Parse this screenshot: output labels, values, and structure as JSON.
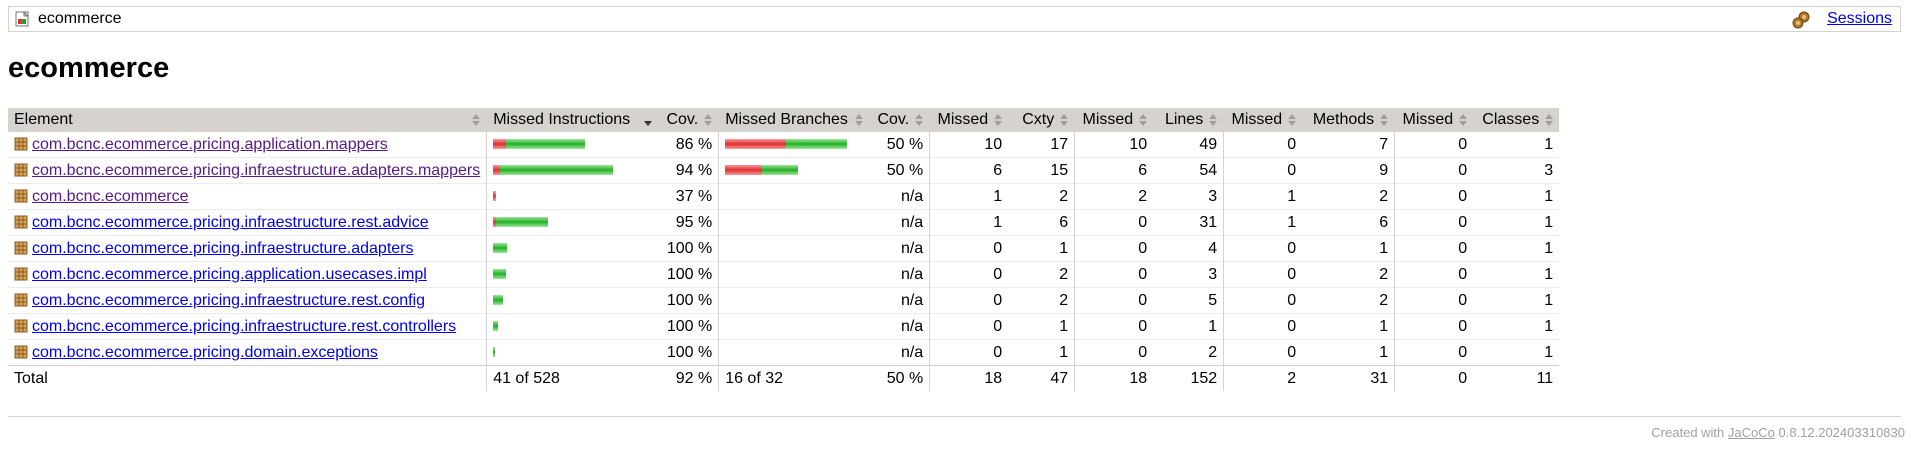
{
  "breadcrumb": {
    "title": "ecommerce",
    "sessions_label": "Sessions"
  },
  "page_title": "ecommerce",
  "table": {
    "headers": [
      "Element",
      "Missed Instructions",
      "Cov.",
      "Missed Branches",
      "Cov.",
      "Missed",
      "Cxty",
      "Missed",
      "Lines",
      "Missed",
      "Methods",
      "Missed",
      "Classes"
    ],
    "rows": [
      {
        "name": "com.bcnc.ecommerce.pricing.application.mappers",
        "visited": true,
        "instr_missed_frac": 0.14,
        "instr_bar_total": 528,
        "instr_count": 113,
        "instr_cov": "86 %",
        "br_missed_frac": 0.5,
        "br_count": 20,
        "br_cov": "50 %",
        "cx_missed": "10",
        "cx": "17",
        "ln_missed": "10",
        "ln": "49",
        "m_missed": "0",
        "m": "7",
        "c_missed": "0",
        "c": "1"
      },
      {
        "name": "com.bcnc.ecommerce.pricing.infraestructure.adapters.mappers",
        "visited": true,
        "instr_missed_frac": 0.06,
        "instr_count": 148,
        "instr_cov": "94 %",
        "br_missed_frac": 0.5,
        "br_count": 12,
        "br_cov": "50 %",
        "cx_missed": "6",
        "cx": "15",
        "ln_missed": "6",
        "ln": "54",
        "m_missed": "0",
        "m": "9",
        "c_missed": "0",
        "c": "3"
      },
      {
        "name": "com.bcnc.ecommerce",
        "visited": true,
        "instr_missed_frac": 0.63,
        "instr_count": 4,
        "instr_cov": "37 %",
        "br_missed_frac": null,
        "br_count": 0,
        "br_cov": "n/a",
        "cx_missed": "1",
        "cx": "2",
        "ln_missed": "2",
        "ln": "3",
        "m_missed": "1",
        "m": "2",
        "c_missed": "0",
        "c": "1"
      },
      {
        "name": "com.bcnc.ecommerce.pricing.infraestructure.rest.advice",
        "visited": false,
        "instr_missed_frac": 0.05,
        "instr_count": 68,
        "instr_cov": "95 %",
        "br_missed_frac": null,
        "br_count": 0,
        "br_cov": "n/a",
        "cx_missed": "1",
        "cx": "6",
        "ln_missed": "0",
        "ln": "31",
        "m_missed": "1",
        "m": "6",
        "c_missed": "0",
        "c": "1"
      },
      {
        "name": "com.bcnc.ecommerce.pricing.infraestructure.adapters",
        "visited": false,
        "instr_missed_frac": 0,
        "instr_count": 17,
        "instr_cov": "100 %",
        "br_missed_frac": null,
        "br_count": 0,
        "br_cov": "n/a",
        "cx_missed": "0",
        "cx": "1",
        "ln_missed": "0",
        "ln": "4",
        "m_missed": "0",
        "m": "1",
        "c_missed": "0",
        "c": "1"
      },
      {
        "name": "com.bcnc.ecommerce.pricing.application.usecases.impl",
        "visited": false,
        "instr_missed_frac": 0,
        "instr_count": 16,
        "instr_cov": "100 %",
        "br_missed_frac": null,
        "br_count": 0,
        "br_cov": "n/a",
        "cx_missed": "0",
        "cx": "2",
        "ln_missed": "0",
        "ln": "3",
        "m_missed": "0",
        "m": "2",
        "c_missed": "0",
        "c": "1"
      },
      {
        "name": "com.bcnc.ecommerce.pricing.infraestructure.rest.config",
        "visited": false,
        "instr_missed_frac": 0,
        "instr_count": 12,
        "instr_cov": "100 %",
        "br_missed_frac": null,
        "br_count": 0,
        "br_cov": "n/a",
        "cx_missed": "0",
        "cx": "2",
        "ln_missed": "0",
        "ln": "5",
        "m_missed": "0",
        "m": "2",
        "c_missed": "0",
        "c": "1"
      },
      {
        "name": "com.bcnc.ecommerce.pricing.infraestructure.rest.controllers",
        "visited": false,
        "instr_missed_frac": 0,
        "instr_count": 6,
        "instr_cov": "100 %",
        "br_missed_frac": null,
        "br_count": 0,
        "br_cov": "n/a",
        "cx_missed": "0",
        "cx": "1",
        "ln_missed": "0",
        "ln": "1",
        "m_missed": "0",
        "m": "1",
        "c_missed": "0",
        "c": "1"
      },
      {
        "name": "com.bcnc.ecommerce.pricing.domain.exceptions",
        "visited": false,
        "instr_missed_frac": 0,
        "instr_count": 3,
        "instr_cov": "100 %",
        "br_missed_frac": null,
        "br_count": 0,
        "br_cov": "n/a",
        "cx_missed": "0",
        "cx": "1",
        "ln_missed": "0",
        "ln": "2",
        "m_missed": "0",
        "m": "1",
        "c_missed": "0",
        "c": "1"
      }
    ],
    "total": {
      "label": "Total",
      "instr": "41 of 528",
      "instr_cov": "92 %",
      "br": "16 of 32",
      "br_cov": "50 %",
      "cx_missed": "18",
      "cx": "47",
      "ln_missed": "18",
      "ln": "152",
      "m_missed": "2",
      "m": "31",
      "c_missed": "0",
      "c": "11"
    }
  },
  "footer": {
    "prefix": "Created with ",
    "link": "JaCoCo",
    "version": " 0.8.12.202403310830"
  },
  "colors": {
    "missed": "#e02e2e",
    "covered": "#22b022",
    "header_bg": "#d6d3ce",
    "link": "#0000ee",
    "visited": "#551a8b"
  }
}
